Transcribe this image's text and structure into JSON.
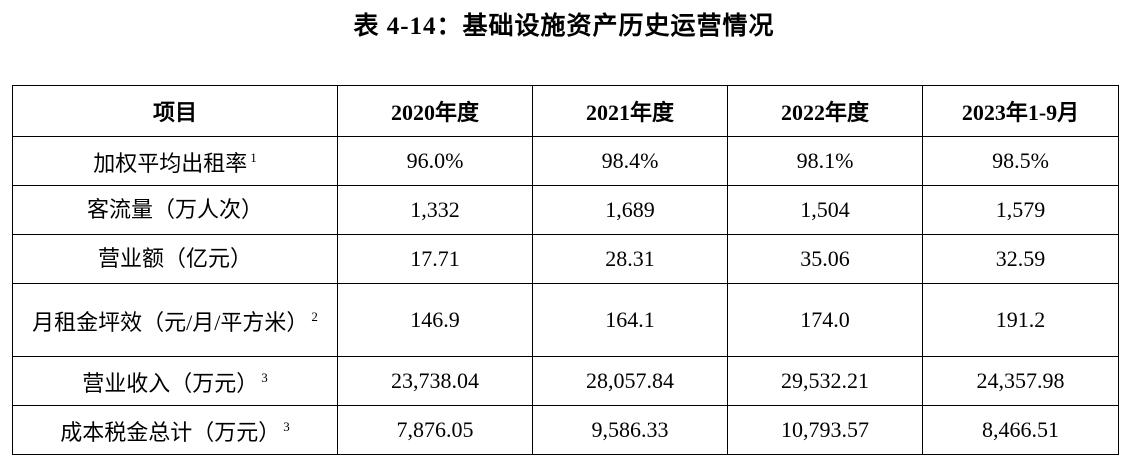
{
  "title": "表 4-14：基础设施资产历史运营情况",
  "table": {
    "header": [
      "项目",
      "2020年度",
      "2021年度",
      "2022年度",
      "2023年1-9月"
    ],
    "rows": [
      {
        "label": "加权平均出租率",
        "note": "1",
        "values": [
          "96.0%",
          "98.4%",
          "98.1%",
          "98.5%"
        ]
      },
      {
        "label": "客流量（万人次）",
        "values": [
          "1,332",
          "1,689",
          "1,504",
          "1,579"
        ]
      },
      {
        "label": "营业额（亿元）",
        "values": [
          "17.71",
          "28.31",
          "35.06",
          "32.59"
        ]
      },
      {
        "label": "月租金坪效（元/月/平方米）",
        "note": "2",
        "values": [
          "146.9",
          "164.1",
          "174.0",
          "191.2"
        ]
      },
      {
        "label": "营业收入（万元）",
        "note": "3",
        "values": [
          "23,738.04",
          "28,057.84",
          "29,532.21",
          "24,357.98"
        ]
      },
      {
        "label": "成本税金总计（万元）",
        "note": "3",
        "values": [
          "7,876.05",
          "9,586.33",
          "10,793.57",
          "8,466.51"
        ]
      }
    ]
  }
}
